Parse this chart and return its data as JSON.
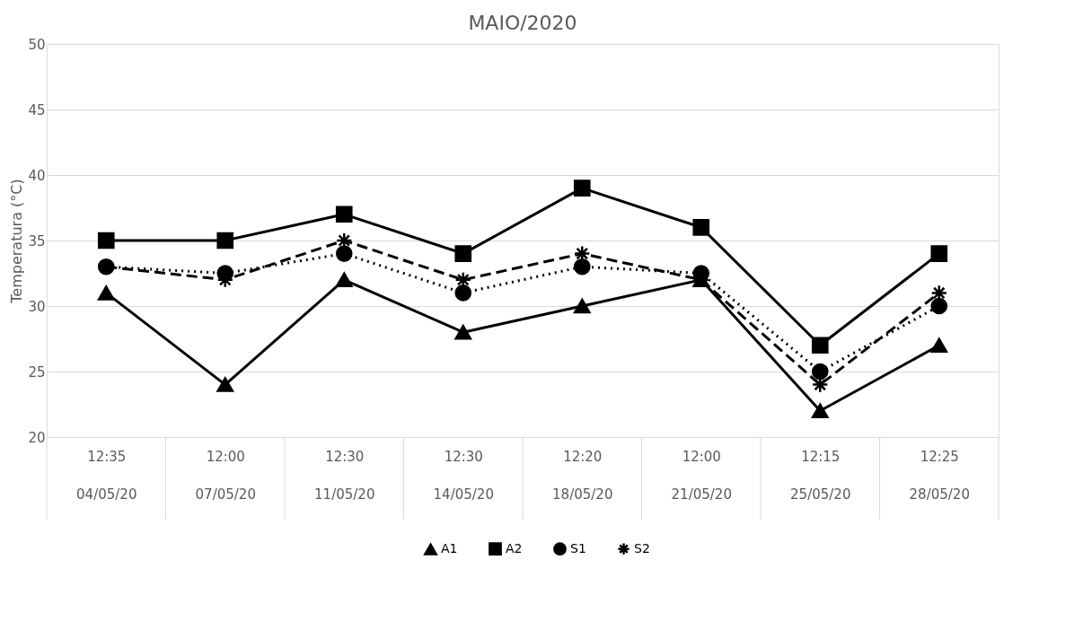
{
  "chart_data": {
    "type": "line",
    "title": "MAIO/2020",
    "ylabel": "Temperatura (°C)",
    "categories": [
      "12:35\n04/05/20",
      "12:00\n07/05/20",
      "12:30\n11/05/20",
      "12:30\n14/05/20",
      "12:20\n18/05/20",
      "12:00\n21/05/20",
      "12:15\n25/05/20",
      "12:25\n28/05/20"
    ],
    "series": [
      {
        "name": "A1",
        "color": "#000000",
        "marker": "triangle",
        "line_style": "solid",
        "values": [
          31,
          24,
          32,
          28,
          30,
          32,
          22,
          27
        ]
      },
      {
        "name": "A2",
        "color": "#000000",
        "marker": "square",
        "line_style": "solid",
        "values": [
          35,
          35,
          37,
          34,
          39,
          36,
          27,
          34
        ]
      },
      {
        "name": "S1",
        "color": "#000000",
        "marker": "circle",
        "line_style": "dotted",
        "values": [
          33,
          32.5,
          34,
          31,
          33,
          32.5,
          25,
          30
        ]
      },
      {
        "name": "S2",
        "color": "#000000",
        "marker": "cross",
        "line_style": "dashed",
        "values": [
          33,
          32,
          35,
          32,
          34,
          32,
          24,
          31
        ]
      }
    ],
    "ylim": [
      20,
      50
    ],
    "yticks": [
      20,
      25,
      30,
      35,
      40,
      45,
      50
    ],
    "grid": "y",
    "legend": "bottom"
  }
}
